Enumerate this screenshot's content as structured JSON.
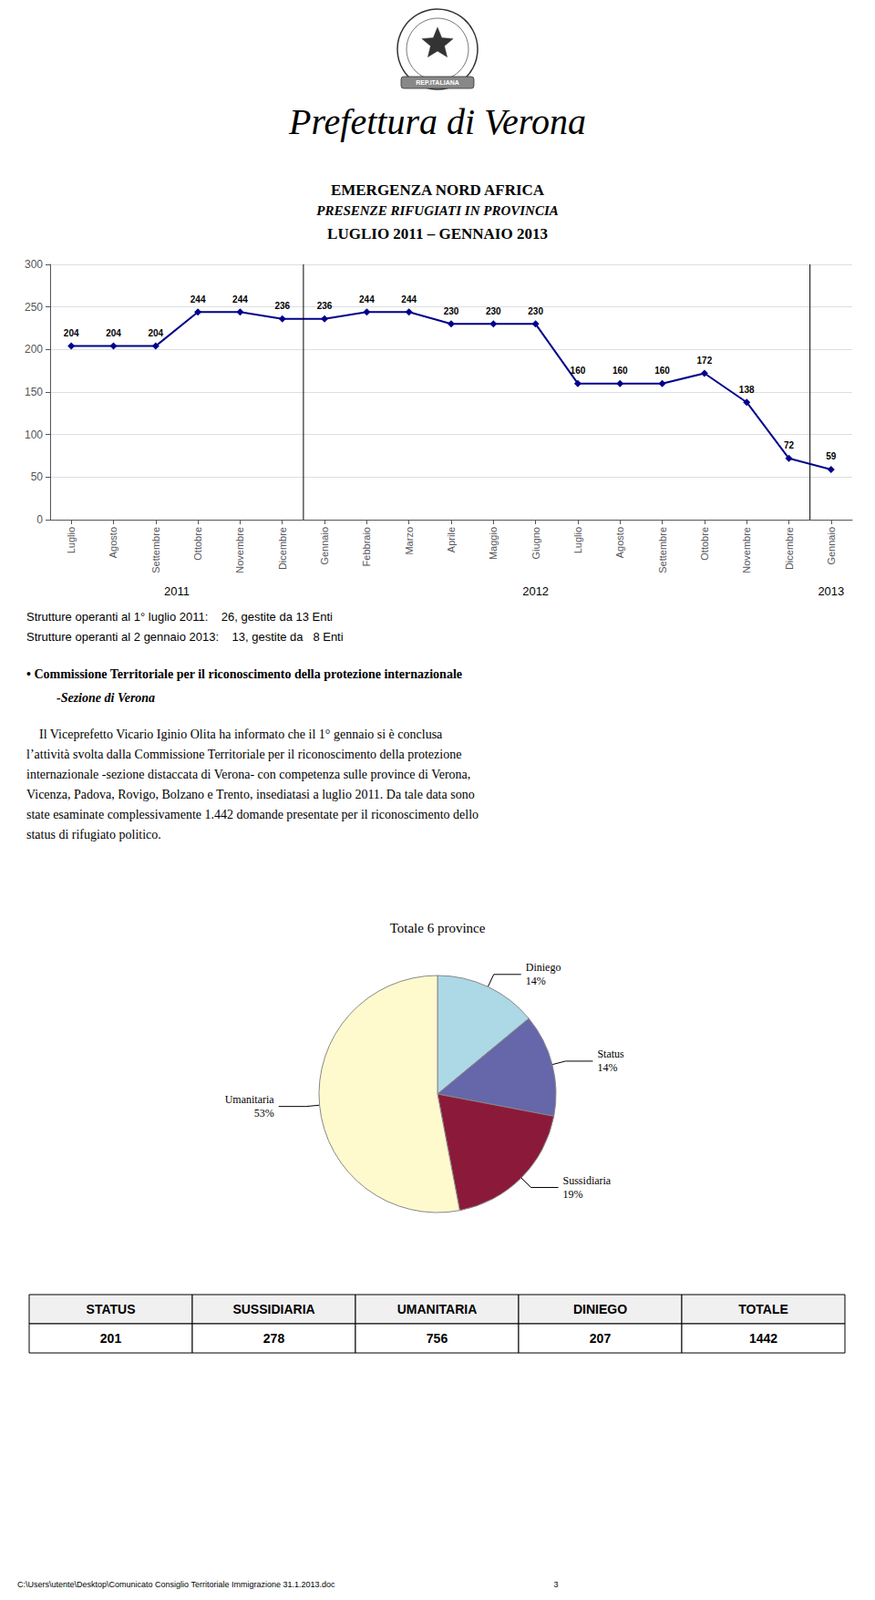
{
  "texts": {
    "heading": "Prefettura di Verona",
    "emblem": "REP.ITALIANA",
    "notes": [
      "Strutture operanti al 1° luglio 2011:    26, gestite da 13 Enti",
      "Strutture operanti al 2 gennaio 2013:    13, gestite da   8 Enti"
    ],
    "bullets": [
      "• Commissione Territoriale per il riconoscimento della protezione internazionale",
      "-Sezione di Verona"
    ],
    "body": "    Il Viceprefetto Vicario Iginio Olita ha informato che il 1° gennaio si è conclusa\nl’attività svolta dalla Commissione Territoriale per il riconoscimento della protezione\ninternazionale -sezione distaccata di Verona- con competenza sulle province di Verona,\nVicenza, Padova, Rovigo, Bolzano e Trento, insediatasi a luglio 2011. Da tale data sono\nstate esaminate complessivamente 1.442 domande presentate per il riconoscimento dello\nstatus di rifugiato politico.",
    "footer": "C:\\Users\\utente\\Desktop\\Comunicato Consiglio Territoriale Immigrazione 31.1.2013.doc                                                                                                3"
  },
  "chart_data": [
    {
      "type": "line",
      "title": "EMERGENZA NORD AFRICA",
      "subtitle": [
        "PRESENZE RIFUGIATI IN PROVINCIA",
        "LUGLIO 2011 – GENNAIO 2013"
      ],
      "categories": [
        "Luglio",
        "Agosto",
        "Settembre",
        "Ottobre",
        "Novembre",
        "Dicembre",
        "Gennaio",
        "Febbraio",
        "Marzo",
        "Aprile",
        "Maggio",
        "Giugno",
        "Luglio",
        "Agosto",
        "Settembre",
        "Ottobre",
        "Novembre",
        "Dicembre",
        "Gennaio"
      ],
      "values": [
        204,
        204,
        204,
        244,
        244,
        236,
        236,
        244,
        244,
        230,
        230,
        230,
        160,
        160,
        160,
        172,
        138,
        72,
        59
      ],
      "color": "#00008B",
      "marker": "diamond",
      "ylim": [
        0,
        300
      ],
      "yticks": [
        0,
        50,
        100,
        150,
        200,
        250,
        300
      ],
      "grid": true,
      "data_labels": true,
      "separators": [
        5.5,
        17.5
      ],
      "annotations": [
        {
          "text": "2011",
          "x": 2.5
        },
        {
          "text": "2012",
          "x": 11.0
        },
        {
          "text": "2013",
          "x": 18.0
        }
      ]
    },
    {
      "type": "pie",
      "title": "Totale 6 province",
      "categories": [
        "Diniego",
        "Status",
        "Sussidiaria",
        "Umanitaria"
      ],
      "values": [
        14,
        14,
        19,
        53
      ],
      "value_labels": [
        "14%",
        "14%",
        "19%",
        "53%"
      ],
      "colors": [
        "#ADD8E6",
        "#6666AA",
        "#8B1A3A",
        "#FFFACD"
      ]
    },
    {
      "type": "table",
      "columns": [
        "STATUS",
        "SUSSIDIARIA",
        "UMANITARIA",
        "DINIEGO",
        "TOTALE"
      ],
      "rows": [
        [
          "201",
          "278",
          "756",
          "207",
          "1442"
        ]
      ]
    }
  ]
}
